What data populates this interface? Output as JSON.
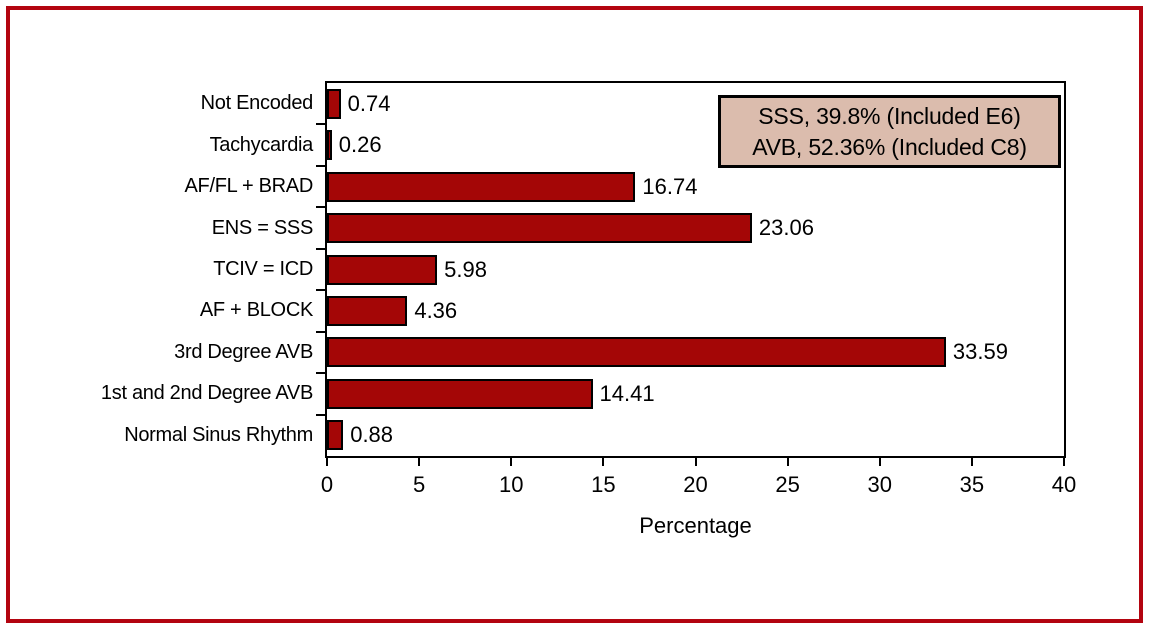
{
  "figure": {
    "border_color": "#b30410",
    "background": "#ffffff"
  },
  "chart_data": {
    "type": "bar",
    "orientation": "horizontal",
    "categories": [
      "Not Encoded",
      "Tachycardia",
      "AF/FL + BRAD",
      "ENS = SSS",
      "TCIV = ICD",
      "AF + BLOCK",
      "3rd Degree AVB",
      "1st and 2nd Degree AVB",
      "Normal Sinus Rhythm"
    ],
    "values": [
      0.74,
      0.26,
      16.74,
      23.06,
      5.98,
      4.36,
      33.59,
      14.41,
      0.88
    ],
    "value_labels": [
      "0.74",
      "0.26",
      "16.74",
      "23.06",
      "5.98",
      "4.36",
      "33.59",
      "14.41",
      "0.88"
    ],
    "xlabel": "Percentage",
    "xlim": [
      0,
      40
    ],
    "xticks": [
      0,
      5,
      10,
      15,
      20,
      25,
      30,
      35,
      40
    ],
    "grid": false,
    "bar_color": "#a40606",
    "bar_border_color": "#000000",
    "annotations": [
      "SSS, 39.8% (Included E6)",
      "AVB, 52.36% (Included C8)"
    ],
    "annotation_bg": "#dbbcad"
  }
}
